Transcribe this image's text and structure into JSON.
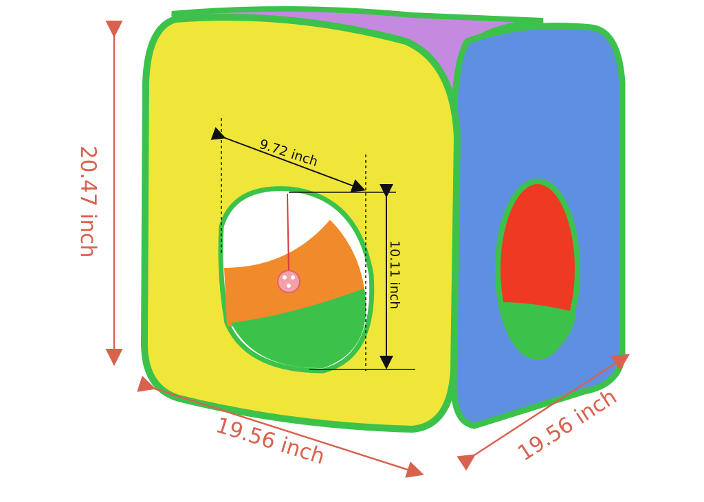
{
  "product": {
    "colors": {
      "yellow": "#f0e63a",
      "blue": "#5f8fe0",
      "purple": "#c48ae0",
      "green": "#3cc24a",
      "orange": "#f08a2a",
      "red": "#ee3a22",
      "annotation": "#d9624f"
    }
  },
  "dimensions": {
    "height": "20.47 inch",
    "width": "19.56 inch",
    "depth": "19.56 inch",
    "hole_width": "9.72 inch",
    "hole_height": "10.11 inch"
  }
}
